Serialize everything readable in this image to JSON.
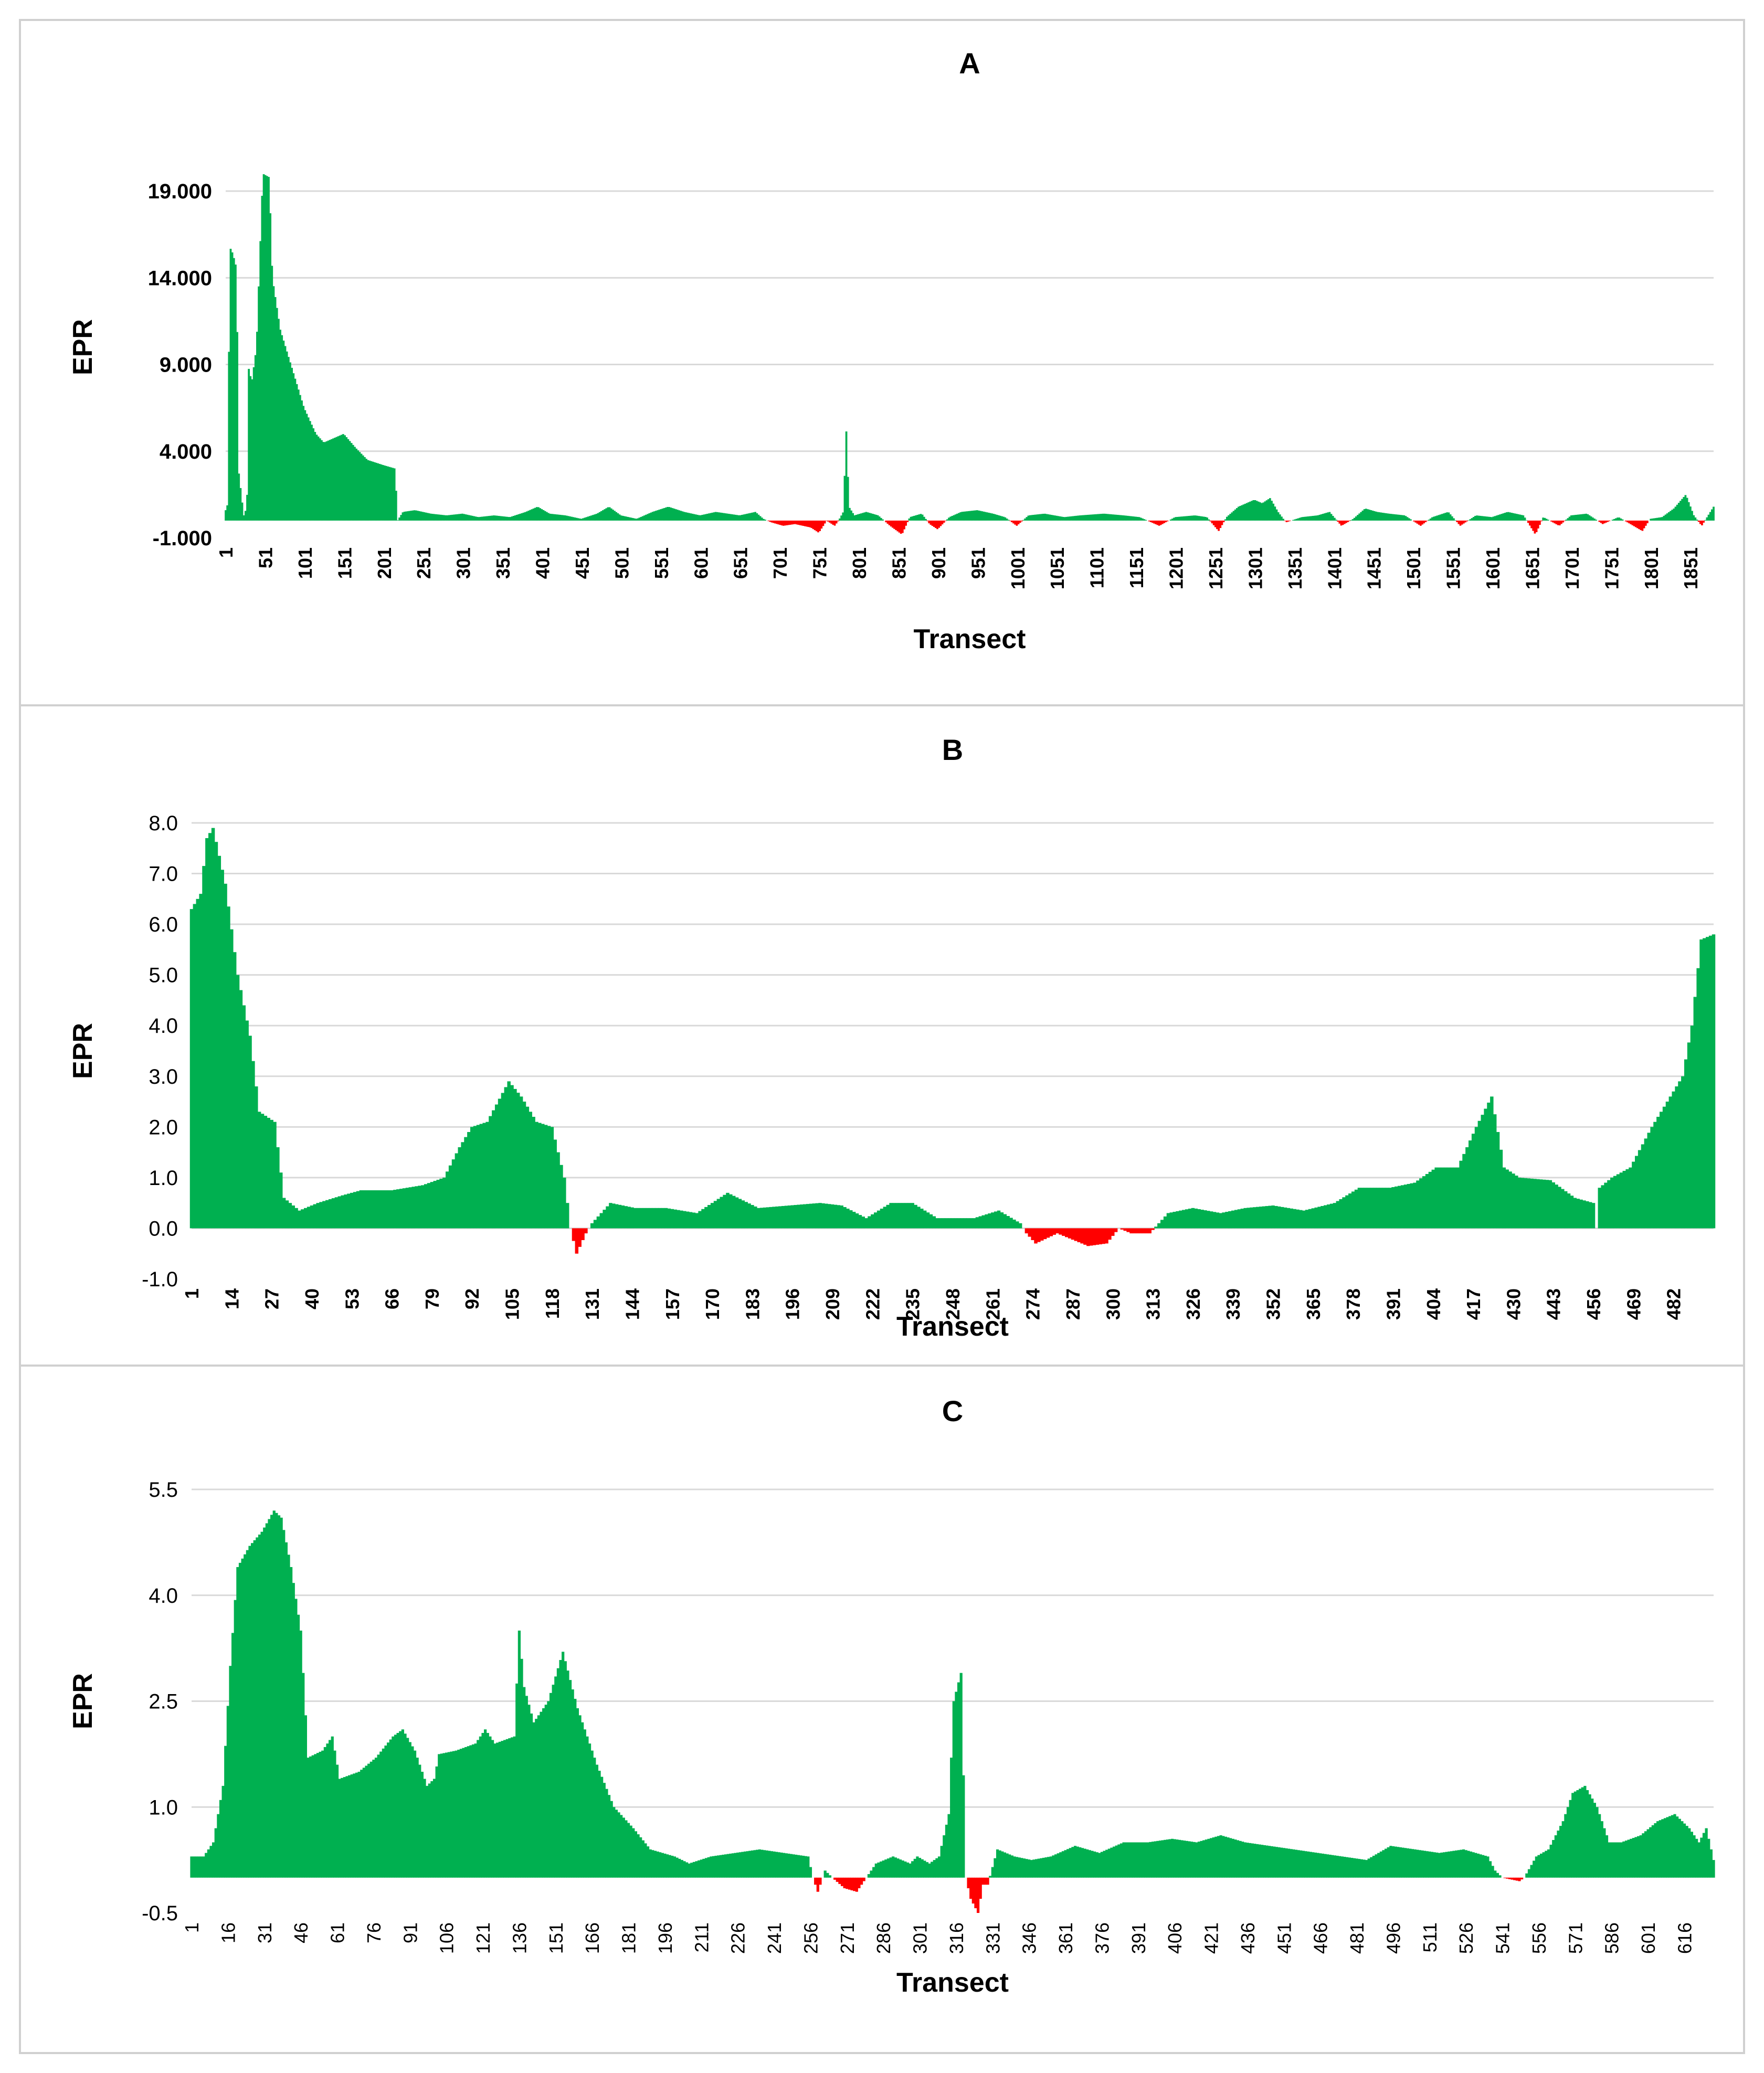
{
  "chart_data": [
    {
      "type": "area",
      "title": "A",
      "xlabel": "Transect",
      "ylabel": "EPR",
      "ylim": [
        -1,
        21
      ],
      "yticks": [
        -1,
        4,
        9,
        14,
        19
      ],
      "ytick_labels": [
        "-1.000",
        "4.000",
        "9.000",
        "14.000",
        "19.000"
      ],
      "x_range": [
        1,
        1880
      ],
      "xtick_labels": [
        "1",
        "51",
        "101",
        "151",
        "201",
        "251",
        "301",
        "351",
        "401",
        "451",
        "501",
        "551",
        "601",
        "651",
        "701",
        "751",
        "801",
        "851",
        "901",
        "951",
        "1001",
        "1051",
        "1101",
        "1151",
        "1201",
        "1251",
        "1301",
        "1351",
        "1401",
        "1451",
        "1501",
        "1551",
        "1601",
        "1651",
        "1701",
        "1751",
        "1801",
        "1851"
      ],
      "positive_color": "#00b050",
      "negative_color": "#ff0000",
      "series_profile": [
        [
          1,
          0.6
        ],
        [
          4,
          1.0
        ],
        [
          6,
          15.8
        ],
        [
          10,
          15.4
        ],
        [
          15,
          14.5
        ],
        [
          17,
          3.0
        ],
        [
          22,
          1.0
        ],
        [
          24,
          0.3
        ],
        [
          28,
          0.8
        ],
        [
          30,
          8.8
        ],
        [
          34,
          8.0
        ],
        [
          40,
          10.0
        ],
        [
          48,
          20.0
        ],
        [
          56,
          19.8
        ],
        [
          60,
          14.0
        ],
        [
          70,
          11.0
        ],
        [
          80,
          9.5
        ],
        [
          90,
          8.0
        ],
        [
          100,
          6.5
        ],
        [
          115,
          5.0
        ],
        [
          125,
          4.5
        ],
        [
          140,
          4.8
        ],
        [
          150,
          5.0
        ],
        [
          165,
          4.2
        ],
        [
          180,
          3.5
        ],
        [
          200,
          3.2
        ],
        [
          215,
          3.0
        ],
        [
          218,
          0.0
        ],
        [
          225,
          0.5
        ],
        [
          240,
          0.6
        ],
        [
          260,
          0.4
        ],
        [
          280,
          0.3
        ],
        [
          300,
          0.4
        ],
        [
          320,
          0.2
        ],
        [
          340,
          0.3
        ],
        [
          360,
          0.2
        ],
        [
          380,
          0.5
        ],
        [
          395,
          0.8
        ],
        [
          410,
          0.4
        ],
        [
          430,
          0.3
        ],
        [
          450,
          0.1
        ],
        [
          470,
          0.4
        ],
        [
          485,
          0.8
        ],
        [
          500,
          0.3
        ],
        [
          520,
          0.1
        ],
        [
          540,
          0.5
        ],
        [
          560,
          0.8
        ],
        [
          580,
          0.5
        ],
        [
          600,
          0.3
        ],
        [
          620,
          0.5
        ],
        [
          650,
          0.3
        ],
        [
          670,
          0.5
        ],
        [
          680,
          0.1
        ],
        [
          690,
          -0.1
        ],
        [
          705,
          -0.3
        ],
        [
          720,
          -0.2
        ],
        [
          740,
          -0.4
        ],
        [
          750,
          -0.7
        ],
        [
          760,
          0.0
        ],
        [
          770,
          -0.3
        ],
        [
          775,
          0.0
        ],
        [
          781,
          0.5
        ],
        [
          785,
          5.4
        ],
        [
          788,
          0.8
        ],
        [
          795,
          0.3
        ],
        [
          810,
          0.5
        ],
        [
          825,
          0.3
        ],
        [
          840,
          -0.3
        ],
        [
          855,
          -0.8
        ],
        [
          865,
          0.2
        ],
        [
          880,
          0.4
        ],
        [
          890,
          -0.2
        ],
        [
          900,
          -0.5
        ],
        [
          915,
          0.2
        ],
        [
          930,
          0.5
        ],
        [
          950,
          0.6
        ],
        [
          970,
          0.4
        ],
        [
          985,
          0.2
        ],
        [
          1000,
          -0.3
        ],
        [
          1015,
          0.3
        ],
        [
          1035,
          0.4
        ],
        [
          1060,
          0.2
        ],
        [
          1080,
          0.3
        ],
        [
          1110,
          0.4
        ],
        [
          1135,
          0.3
        ],
        [
          1155,
          0.2
        ],
        [
          1165,
          0.0
        ],
        [
          1180,
          -0.3
        ],
        [
          1200,
          0.2
        ],
        [
          1225,
          0.3
        ],
        [
          1240,
          0.2
        ],
        [
          1255,
          -0.6
        ],
        [
          1265,
          0.2
        ],
        [
          1280,
          0.8
        ],
        [
          1300,
          1.2
        ],
        [
          1310,
          1.0
        ],
        [
          1320,
          1.3
        ],
        [
          1330,
          0.5
        ],
        [
          1340,
          -0.1
        ],
        [
          1360,
          0.2
        ],
        [
          1380,
          0.3
        ],
        [
          1395,
          0.5
        ],
        [
          1410,
          -0.3
        ],
        [
          1425,
          0.1
        ],
        [
          1440,
          0.7
        ],
        [
          1455,
          0.5
        ],
        [
          1470,
          0.4
        ],
        [
          1490,
          0.3
        ],
        [
          1510,
          -0.3
        ],
        [
          1525,
          0.2
        ],
        [
          1545,
          0.5
        ],
        [
          1560,
          -0.3
        ],
        [
          1580,
          0.3
        ],
        [
          1600,
          0.2
        ],
        [
          1620,
          0.5
        ],
        [
          1640,
          0.3
        ],
        [
          1655,
          -0.8
        ],
        [
          1665,
          0.2
        ],
        [
          1685,
          -0.3
        ],
        [
          1700,
          0.3
        ],
        [
          1720,
          0.4
        ],
        [
          1740,
          -0.2
        ],
        [
          1760,
          0.2
        ],
        [
          1790,
          -0.6
        ],
        [
          1800,
          0.1
        ],
        [
          1815,
          0.2
        ],
        [
          1830,
          0.7
        ],
        [
          1845,
          1.5
        ],
        [
          1855,
          0.3
        ],
        [
          1865,
          -0.3
        ],
        [
          1880,
          0.8
        ]
      ]
    },
    {
      "type": "area",
      "title": "B",
      "xlabel": "Transect",
      "ylabel": "EPR",
      "ylim": [
        -1,
        8
      ],
      "yticks": [
        -1,
        0,
        1,
        2,
        3,
        4,
        5,
        6,
        7,
        8
      ],
      "ytick_labels": [
        "-1.0",
        "0.0",
        "1.0",
        "2.0",
        "3.0",
        "4.0",
        "5.0",
        "6.0",
        "7.0",
        "8.0"
      ],
      "x_range": [
        1,
        495
      ],
      "xtick_labels": [
        "1",
        "14",
        "27",
        "40",
        "53",
        "66",
        "79",
        "92",
        "105",
        "118",
        "131",
        "144",
        "157",
        "170",
        "183",
        "196",
        "209",
        "222",
        "235",
        "248",
        "261",
        "274",
        "287",
        "300",
        "313",
        "326",
        "339",
        "352",
        "365",
        "378",
        "391",
        "404",
        "417",
        "430",
        "443",
        "456",
        "469",
        "482"
      ],
      "positive_color": "#00b050",
      "negative_color": "#ff0000",
      "series_profile": [
        [
          1,
          6.3
        ],
        [
          4,
          6.6
        ],
        [
          6,
          7.7
        ],
        [
          8,
          7.9
        ],
        [
          12,
          6.8
        ],
        [
          16,
          5.0
        ],
        [
          20,
          3.8
        ],
        [
          23,
          2.3
        ],
        [
          28,
          2.1
        ],
        [
          31,
          0.6
        ],
        [
          36,
          0.35
        ],
        [
          42,
          0.5
        ],
        [
          50,
          0.65
        ],
        [
          56,
          0.75
        ],
        [
          66,
          0.75
        ],
        [
          76,
          0.85
        ],
        [
          83,
          1.0
        ],
        [
          88,
          1.6
        ],
        [
          92,
          2.0
        ],
        [
          97,
          2.1
        ],
        [
          104,
          2.9
        ],
        [
          108,
          2.6
        ],
        [
          113,
          2.1
        ],
        [
          118,
          2.0
        ],
        [
          122,
          1.0
        ],
        [
          124,
          0.0
        ],
        [
          126,
          -0.5
        ],
        [
          129,
          -0.1
        ],
        [
          131,
          0.1
        ],
        [
          137,
          0.5
        ],
        [
          145,
          0.4
        ],
        [
          155,
          0.4
        ],
        [
          165,
          0.3
        ],
        [
          175,
          0.7
        ],
        [
          185,
          0.4
        ],
        [
          195,
          0.45
        ],
        [
          205,
          0.5
        ],
        [
          212,
          0.45
        ],
        [
          220,
          0.2
        ],
        [
          228,
          0.5
        ],
        [
          235,
          0.5
        ],
        [
          243,
          0.2
        ],
        [
          255,
          0.2
        ],
        [
          263,
          0.35
        ],
        [
          270,
          0.1
        ],
        [
          272,
          -0.1
        ],
        [
          275,
          -0.3
        ],
        [
          282,
          -0.1
        ],
        [
          292,
          -0.35
        ],
        [
          298,
          -0.3
        ],
        [
          302,
          0.0
        ],
        [
          306,
          -0.1
        ],
        [
          312,
          -0.1
        ],
        [
          318,
          0.3
        ],
        [
          326,
          0.4
        ],
        [
          335,
          0.3
        ],
        [
          343,
          0.4
        ],
        [
          352,
          0.45
        ],
        [
          362,
          0.35
        ],
        [
          372,
          0.5
        ],
        [
          380,
          0.8
        ],
        [
          390,
          0.8
        ],
        [
          398,
          0.9
        ],
        [
          405,
          1.2
        ],
        [
          412,
          1.2
        ],
        [
          418,
          2.0
        ],
        [
          423,
          2.6
        ],
        [
          427,
          1.2
        ],
        [
          432,
          1.0
        ],
        [
          442,
          0.95
        ],
        [
          450,
          0.6
        ],
        [
          456,
          0.5
        ],
        [
          457,
          0.0
        ],
        [
          458,
          0.8
        ],
        [
          462,
          1.0
        ],
        [
          468,
          1.2
        ],
        [
          475,
          2.0
        ],
        [
          480,
          2.5
        ],
        [
          485,
          3.0
        ],
        [
          488,
          4.0
        ],
        [
          491,
          5.7
        ],
        [
          495,
          5.8
        ]
      ]
    },
    {
      "type": "area",
      "title": "C",
      "xlabel": "Transect",
      "ylabel": "EPR",
      "ylim": [
        -0.5,
        5.5
      ],
      "yticks": [
        -0.5,
        1.0,
        2.5,
        4.0,
        5.5
      ],
      "ytick_labels": [
        "-0.5",
        "1.0",
        "2.5",
        "4.0",
        "5.5"
      ],
      "x_range": [
        1,
        628
      ],
      "xtick_labels": [
        "1",
        "16",
        "31",
        "46",
        "61",
        "76",
        "91",
        "106",
        "121",
        "136",
        "151",
        "166",
        "181",
        "196",
        "211",
        "226",
        "241",
        "256",
        "271",
        "286",
        "301",
        "316",
        "331",
        "346",
        "361",
        "376",
        "391",
        "406",
        "421",
        "436",
        "451",
        "466",
        "481",
        "496",
        "511",
        "526",
        "541",
        "556",
        "571",
        "586",
        "601",
        "616"
      ],
      "positive_color": "#00b050",
      "negative_color": "#ff0000",
      "series_profile": [
        [
          1,
          0.3
        ],
        [
          6,
          0.3
        ],
        [
          10,
          0.5
        ],
        [
          14,
          1.3
        ],
        [
          17,
          3.0
        ],
        [
          20,
          4.4
        ],
        [
          25,
          4.7
        ],
        [
          30,
          4.9
        ],
        [
          35,
          5.2
        ],
        [
          38,
          5.1
        ],
        [
          42,
          4.4
        ],
        [
          46,
          3.5
        ],
        [
          49,
          1.7
        ],
        [
          55,
          1.8
        ],
        [
          59,
          2.0
        ],
        [
          62,
          1.4
        ],
        [
          70,
          1.5
        ],
        [
          77,
          1.7
        ],
        [
          84,
          2.0
        ],
        [
          88,
          2.1
        ],
        [
          93,
          1.8
        ],
        [
          98,
          1.3
        ],
        [
          101,
          1.4
        ],
        [
          103,
          1.75
        ],
        [
          110,
          1.8
        ],
        [
          118,
          1.9
        ],
        [
          122,
          2.1
        ],
        [
          126,
          1.9
        ],
        [
          134,
          2.0
        ],
        [
          136,
          3.5
        ],
        [
          138,
          2.7
        ],
        [
          142,
          2.2
        ],
        [
          148,
          2.5
        ],
        [
          154,
          3.2
        ],
        [
          160,
          2.4
        ],
        [
          168,
          1.6
        ],
        [
          175,
          1.0
        ],
        [
          183,
          0.7
        ],
        [
          190,
          0.4
        ],
        [
          200,
          0.3
        ],
        [
          206,
          0.2
        ],
        [
          215,
          0.3
        ],
        [
          225,
          0.35
        ],
        [
          235,
          0.4
        ],
        [
          245,
          0.35
        ],
        [
          255,
          0.3
        ],
        [
          257,
          0.0
        ],
        [
          259,
          -0.2
        ],
        [
          262,
          0.1
        ],
        [
          265,
          0.0
        ],
        [
          270,
          -0.15
        ],
        [
          275,
          -0.2
        ],
        [
          279,
          0.0
        ],
        [
          283,
          0.2
        ],
        [
          290,
          0.3
        ],
        [
          297,
          0.2
        ],
        [
          300,
          0.3
        ],
        [
          305,
          0.2
        ],
        [
          309,
          0.3
        ],
        [
          313,
          0.9
        ],
        [
          315,
          2.5
        ],
        [
          318,
          2.9
        ],
        [
          320,
          0.0
        ],
        [
          322,
          -0.3
        ],
        [
          325,
          -0.5
        ],
        [
          327,
          -0.1
        ],
        [
          329,
          -0.1
        ],
        [
          333,
          0.4
        ],
        [
          340,
          0.3
        ],
        [
          347,
          0.25
        ],
        [
          355,
          0.3
        ],
        [
          365,
          0.45
        ],
        [
          375,
          0.35
        ],
        [
          385,
          0.5
        ],
        [
          395,
          0.5
        ],
        [
          405,
          0.55
        ],
        [
          415,
          0.5
        ],
        [
          425,
          0.6
        ],
        [
          435,
          0.5
        ],
        [
          445,
          0.45
        ],
        [
          455,
          0.4
        ],
        [
          465,
          0.35
        ],
        [
          475,
          0.3
        ],
        [
          485,
          0.25
        ],
        [
          495,
          0.45
        ],
        [
          505,
          0.4
        ],
        [
          515,
          0.35
        ],
        [
          525,
          0.4
        ],
        [
          535,
          0.3
        ],
        [
          538,
          0.1
        ],
        [
          541,
          0.0
        ],
        [
          548,
          -0.05
        ],
        [
          550,
          0.0
        ],
        [
          555,
          0.3
        ],
        [
          560,
          0.4
        ],
        [
          566,
          0.8
        ],
        [
          570,
          1.2
        ],
        [
          575,
          1.3
        ],
        [
          580,
          1.0
        ],
        [
          585,
          0.5
        ],
        [
          590,
          0.5
        ],
        [
          598,
          0.6
        ],
        [
          605,
          0.8
        ],
        [
          612,
          0.9
        ],
        [
          618,
          0.7
        ],
        [
          622,
          0.5
        ],
        [
          625,
          0.7
        ],
        [
          628,
          0.25
        ]
      ]
    }
  ]
}
